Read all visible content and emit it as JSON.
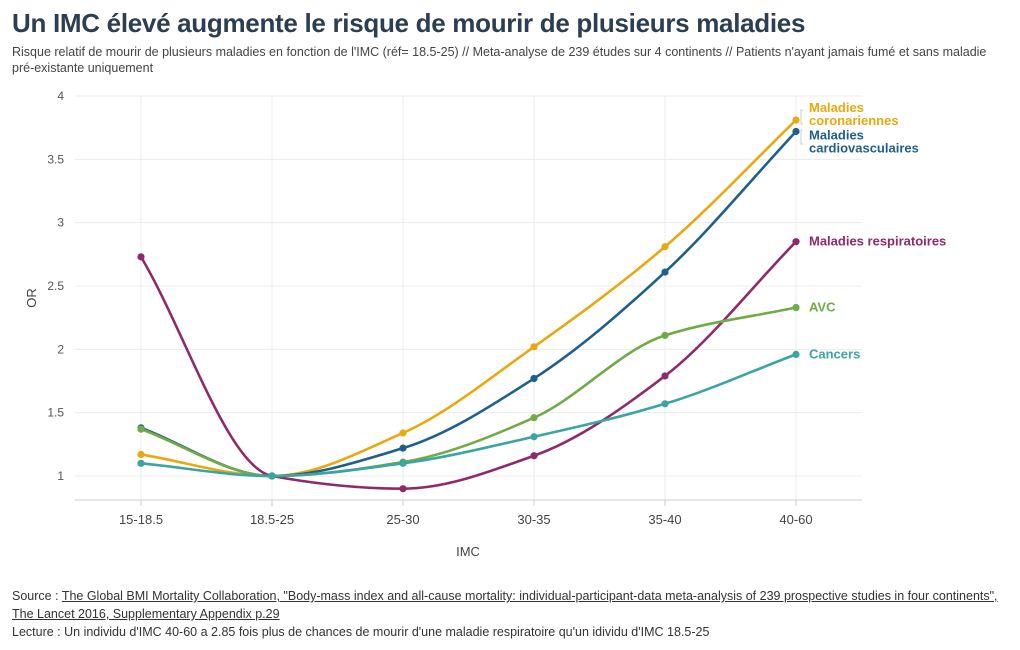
{
  "header": {
    "title": "Un IMC élevé augmente le risque de mourir de plusieurs maladies",
    "subtitle": "Risque relatif de mourir de plusieurs maladies en fonction de l'IMC (réf= 18.5-25) // Meta-analyse de 239 études sur 4 continents // Patients n'ayant jamais fumé et sans maladie pré-existante uniquement"
  },
  "footer": {
    "source_prefix": "Source : ",
    "source_link": "The Global BMI Mortality Collaboration, \"Body-mass index and all-cause mortality: individual-participant-data meta-analysis of 239 prospective studies in four continents\", The Lancet 2016, Supplementary Appendix p.29",
    "reading": "Lecture : Un individu d'IMC 40-60 a 2.85 fois plus de chances de mourir d'une maladie respiratoire qu'un idividu d'IMC 18.5-25"
  },
  "chart_data": {
    "type": "line",
    "xlabel": "IMC",
    "ylabel": "OR",
    "ylim": [
      0.8,
      4
    ],
    "yticks": [
      1,
      1.5,
      2,
      2.5,
      3,
      3.5,
      4
    ],
    "ytick_labels": [
      "1",
      "1.5",
      "2",
      "2.5",
      "3",
      "3.5",
      "4"
    ],
    "grid": true,
    "legend": "direct labels at line ends (right)",
    "categories": [
      "15-18.5",
      "18.5-25",
      "25-30",
      "30-35",
      "35-40",
      "40-60"
    ],
    "series": [
      {
        "name": "Maladies coronariennes",
        "label_lines": [
          "Maladies",
          "coronariennes"
        ],
        "color": "#e8a910",
        "values": [
          1.17,
          1.0,
          1.34,
          2.02,
          2.81,
          3.81
        ]
      },
      {
        "name": "Maladies cardiovasculaires",
        "label_lines": [
          "Maladies",
          "cardiovasculaires"
        ],
        "color": "#1f5f8b",
        "values": [
          1.38,
          1.0,
          1.22,
          1.77,
          2.61,
          3.72
        ]
      },
      {
        "name": "Maladies respiratoires",
        "label_lines": [
          "Maladies respiratoires"
        ],
        "color": "#8e2a6a",
        "values": [
          2.73,
          1.0,
          0.9,
          1.16,
          1.79,
          2.85
        ]
      },
      {
        "name": "AVC",
        "label_lines": [
          "AVC"
        ],
        "color": "#6fac46",
        "values": [
          1.37,
          1.0,
          1.11,
          1.46,
          2.11,
          2.33
        ]
      },
      {
        "name": "Cancers",
        "label_lines": [
          "Cancers"
        ],
        "color": "#3aa5a3",
        "values": [
          1.1,
          1.0,
          1.1,
          1.31,
          1.57,
          1.96
        ]
      }
    ]
  }
}
